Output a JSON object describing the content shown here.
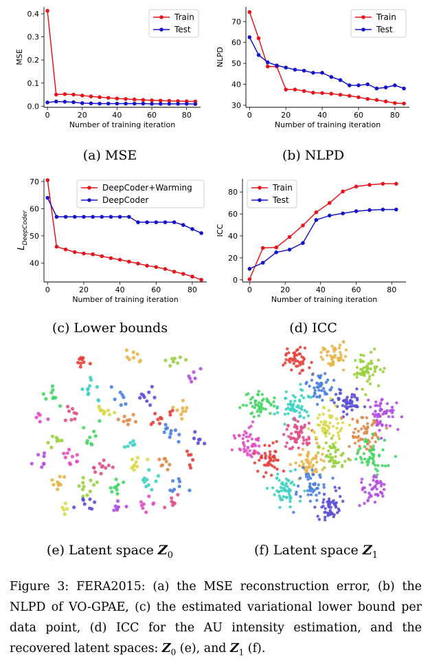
{
  "chart_data": [
    {
      "id": "a",
      "type": "line",
      "ylabel": "MSE",
      "xlabel": "Number of training iteration",
      "xlim": [
        -2,
        88
      ],
      "ylim": [
        -0.005,
        0.43
      ],
      "xticks": [
        0,
        20,
        40,
        60,
        80
      ],
      "yticks": [
        0.0,
        0.1,
        0.2,
        0.3,
        0.4
      ],
      "ytick_labels": [
        "0.0",
        "0.1",
        "0.2",
        "0.3",
        "0.4"
      ],
      "legend": "top-right",
      "series": [
        {
          "name": "Train",
          "color": "#e8141c",
          "x": [
            0,
            5,
            10,
            15,
            20,
            25,
            30,
            35,
            40,
            45,
            50,
            55,
            60,
            65,
            70,
            75,
            80,
            85
          ],
          "y": [
            0.413,
            0.05,
            0.052,
            0.05,
            0.046,
            0.042,
            0.039,
            0.036,
            0.033,
            0.031,
            0.029,
            0.027,
            0.025,
            0.024,
            0.023,
            0.022,
            0.021,
            0.02
          ]
        },
        {
          "name": "Test",
          "color": "#1414c8",
          "x": [
            0,
            5,
            10,
            15,
            20,
            25,
            30,
            35,
            40,
            45,
            50,
            55,
            60,
            65,
            70,
            75,
            80,
            85
          ],
          "y": [
            0.016,
            0.02,
            0.019,
            0.017,
            0.013,
            0.012,
            0.011,
            0.011,
            0.011,
            0.011,
            0.011,
            0.011,
            0.01,
            0.01,
            0.01,
            0.01,
            0.01,
            0.009
          ]
        }
      ]
    },
    {
      "id": "b",
      "type": "line",
      "ylabel": "NLPD",
      "xlabel": "Number of training iteration",
      "xlim": [
        -2,
        88
      ],
      "ylim": [
        29,
        77
      ],
      "xticks": [
        0,
        20,
        40,
        60,
        80
      ],
      "yticks": [
        30,
        40,
        50,
        60,
        70
      ],
      "legend": "top-right",
      "series": [
        {
          "name": "Train",
          "color": "#e8141c",
          "x": [
            0,
            5,
            10,
            15,
            20,
            25,
            30,
            35,
            40,
            45,
            50,
            55,
            60,
            65,
            70,
            75,
            80,
            85
          ],
          "y": [
            74.5,
            62.0,
            48.5,
            48.5,
            37.5,
            37.5,
            36.8,
            36.0,
            35.8,
            35.5,
            35.0,
            34.5,
            33.8,
            33.0,
            32.5,
            31.8,
            31.0,
            30.8
          ]
        },
        {
          "name": "Test",
          "color": "#1414c8",
          "x": [
            0,
            5,
            10,
            15,
            20,
            25,
            30,
            35,
            40,
            45,
            50,
            55,
            60,
            65,
            70,
            75,
            80,
            85
          ],
          "y": [
            62.5,
            54.0,
            50.5,
            49.0,
            48.0,
            47.0,
            46.5,
            45.5,
            45.5,
            43.5,
            42.0,
            39.5,
            39.5,
            40.0,
            38.0,
            38.5,
            39.5,
            38.0
          ]
        }
      ]
    },
    {
      "id": "c",
      "type": "line",
      "ylabel": "L",
      "ylabel_sub": "DeepCoder",
      "xlabel": "Number of training iteration",
      "xlim": [
        -2,
        88
      ],
      "ylim": [
        33,
        71
      ],
      "xticks": [
        0,
        20,
        40,
        60,
        80
      ],
      "yticks": [
        40,
        50,
        60,
        70
      ],
      "legend": "top-right",
      "series": [
        {
          "name": "DeepCoder+Warming",
          "color": "#e8141c",
          "x": [
            0,
            5,
            10,
            15,
            20,
            25,
            30,
            35,
            40,
            45,
            50,
            55,
            60,
            65,
            70,
            75,
            80,
            85
          ],
          "y": [
            70.5,
            46.0,
            45.0,
            44.0,
            43.5,
            43.2,
            42.5,
            41.8,
            41.2,
            40.5,
            39.8,
            39.0,
            38.5,
            37.8,
            36.8,
            36.0,
            35.0,
            33.8
          ]
        },
        {
          "name": "DeepCoder",
          "color": "#1414c8",
          "x": [
            0,
            5,
            10,
            15,
            20,
            25,
            30,
            35,
            40,
            45,
            50,
            55,
            60,
            65,
            70,
            75,
            80,
            85
          ],
          "y": [
            64.0,
            57.0,
            57.0,
            57.0,
            57.0,
            57.0,
            57.0,
            57.0,
            57.0,
            57.0,
            55.0,
            55.0,
            55.0,
            55.0,
            55.0,
            54.0,
            52.5,
            51.0
          ]
        }
      ]
    },
    {
      "id": "d",
      "type": "line",
      "ylabel": "ICC",
      "xlabel": "Number of training iteration",
      "xlim": [
        -4,
        88
      ],
      "ylim": [
        -2,
        92
      ],
      "xticks": [
        0,
        20,
        40,
        60,
        80
      ],
      "yticks": [
        0,
        20,
        40,
        60,
        80
      ],
      "legend": "top-left",
      "series": [
        {
          "name": "Train",
          "color": "#e8141c",
          "x": [
            0,
            7.5,
            15,
            22.5,
            30,
            37.5,
            45,
            52.5,
            60,
            67.5,
            75,
            82.5
          ],
          "y": [
            0.5,
            29.0,
            29.5,
            39.0,
            49.5,
            61.5,
            70.0,
            80.5,
            85.0,
            86.5,
            87.5,
            87.5
          ]
        },
        {
          "name": "Test",
          "color": "#1414c8",
          "x": [
            0,
            7.5,
            15,
            22.5,
            30,
            37.5,
            45,
            52.5,
            60,
            67.5,
            75,
            82.5
          ],
          "y": [
            10.0,
            15.5,
            25.0,
            27.5,
            33.5,
            54.5,
            58.5,
            60.5,
            62.5,
            63.5,
            64.0,
            64.0
          ]
        }
      ]
    },
    {
      "id": "e",
      "type": "scatter",
      "palette": [
        "#e6423c",
        "#e8b54a",
        "#9ad23f",
        "#47d566",
        "#3fd1c2",
        "#4a7fe0",
        "#5c4fd6",
        "#b24fe0",
        "#e04fc2",
        "#e0508a",
        "#d9d94a",
        "#e08a4a"
      ],
      "clusters": [
        [
          0.3,
          0.08,
          0.022,
          0.03,
          9
        ],
        [
          0.58,
          0.06,
          0.03,
          0.022,
          8
        ],
        [
          0.84,
          0.07,
          0.022,
          0.03,
          8
        ],
        [
          0.12,
          0.27,
          0.025,
          0.03,
          10
        ],
        [
          0.33,
          0.25,
          0.035,
          0.03,
          11
        ],
        [
          0.52,
          0.28,
          0.03,
          0.02,
          7
        ],
        [
          0.66,
          0.28,
          0.022,
          0.03,
          9
        ],
        [
          0.92,
          0.18,
          0.02,
          0.025,
          6
        ],
        [
          0.07,
          0.42,
          0.018,
          0.022,
          5
        ],
        [
          0.24,
          0.41,
          0.035,
          0.022,
          8
        ],
        [
          0.42,
          0.38,
          0.03,
          0.022,
          10
        ],
        [
          0.56,
          0.43,
          0.022,
          0.025,
          8
        ],
        [
          0.72,
          0.4,
          0.04,
          0.025,
          10
        ],
        [
          0.87,
          0.37,
          0.03,
          0.025,
          9
        ],
        [
          0.14,
          0.55,
          0.03,
          0.022,
          8
        ],
        [
          0.35,
          0.52,
          0.03,
          0.035,
          9
        ],
        [
          0.57,
          0.57,
          0.03,
          0.02,
          6
        ],
        [
          0.8,
          0.53,
          0.035,
          0.035,
          10
        ],
        [
          0.95,
          0.55,
          0.02,
          0.022,
          6
        ],
        [
          0.06,
          0.66,
          0.025,
          0.03,
          7
        ],
        [
          0.22,
          0.66,
          0.035,
          0.03,
          10
        ],
        [
          0.4,
          0.7,
          0.03,
          0.03,
          11
        ],
        [
          0.6,
          0.68,
          0.035,
          0.025,
          9
        ],
        [
          0.77,
          0.67,
          0.03,
          0.025,
          8
        ],
        [
          0.9,
          0.67,
          0.02,
          0.03,
          6
        ],
        [
          0.17,
          0.8,
          0.03,
          0.03,
          9
        ],
        [
          0.33,
          0.82,
          0.04,
          0.03,
          11
        ],
        [
          0.49,
          0.83,
          0.03,
          0.025,
          9
        ],
        [
          0.68,
          0.82,
          0.04,
          0.03,
          10
        ],
        [
          0.84,
          0.81,
          0.03,
          0.025,
          8
        ],
        [
          0.32,
          0.93,
          0.03,
          0.025,
          8
        ],
        [
          0.49,
          0.94,
          0.03,
          0.022,
          8
        ],
        [
          0.65,
          0.93,
          0.03,
          0.025,
          8
        ],
        [
          0.8,
          0.92,
          0.025,
          0.025,
          7
        ],
        [
          0.2,
          0.94,
          0.02,
          0.02,
          5
        ]
      ]
    },
    {
      "id": "f",
      "type": "scatter",
      "palette": [
        "#e6423c",
        "#e8b54a",
        "#9ad23f",
        "#47d566",
        "#3fd1c2",
        "#4a7fe0",
        "#5c4fd6",
        "#b24fe0",
        "#e04fc2",
        "#e0508a",
        "#d9d94a",
        "#e08a4a"
      ],
      "clusters": [
        [
          0.37,
          0.08,
          0.045,
          0.035,
          45
        ],
        [
          0.62,
          0.06,
          0.04,
          0.035,
          45
        ],
        [
          0.83,
          0.14,
          0.045,
          0.045,
          55
        ],
        [
          0.14,
          0.33,
          0.045,
          0.05,
          50
        ],
        [
          0.37,
          0.35,
          0.05,
          0.05,
          55
        ],
        [
          0.52,
          0.24,
          0.04,
          0.04,
          45
        ],
        [
          0.7,
          0.33,
          0.045,
          0.04,
          50
        ],
        [
          0.93,
          0.4,
          0.05,
          0.045,
          55
        ],
        [
          0.09,
          0.58,
          0.045,
          0.05,
          50
        ],
        [
          0.38,
          0.51,
          0.055,
          0.05,
          60
        ],
        [
          0.57,
          0.47,
          0.05,
          0.05,
          55
        ],
        [
          0.8,
          0.52,
          0.055,
          0.05,
          55
        ],
        [
          0.2,
          0.66,
          0.04,
          0.045,
          45
        ],
        [
          0.45,
          0.68,
          0.045,
          0.045,
          50
        ],
        [
          0.62,
          0.64,
          0.045,
          0.045,
          45
        ],
        [
          0.85,
          0.64,
          0.045,
          0.045,
          50
        ],
        [
          0.3,
          0.84,
          0.05,
          0.05,
          55
        ],
        [
          0.48,
          0.81,
          0.045,
          0.045,
          45
        ],
        [
          0.58,
          0.94,
          0.05,
          0.04,
          50
        ],
        [
          0.86,
          0.84,
          0.04,
          0.045,
          45
        ]
      ]
    }
  ],
  "subcaptions": {
    "a": "(a) MSE",
    "b": "(b) NLPD",
    "c": "(c) Lower bounds",
    "d": "(d) ICC",
    "e_prefix": "(e) Latent space ",
    "e_math": "Z",
    "e_sub": "0",
    "f_prefix": "(f) Latent space ",
    "f_math": "Z",
    "f_sub": "1"
  },
  "caption": {
    "text1": "Figure 3: FERA2015: (a) the MSE reconstruction error, (b) the NLPD of VO-GPAE, (c) the estimated variational lower bound per data point, (d) ICC for the AU intensity estimation, and the recovered latent spaces: ",
    "math1": "Z",
    "sub1": "0",
    "text2": " (e), and ",
    "math2": "Z",
    "sub2": "1",
    "text3": " (f)."
  }
}
